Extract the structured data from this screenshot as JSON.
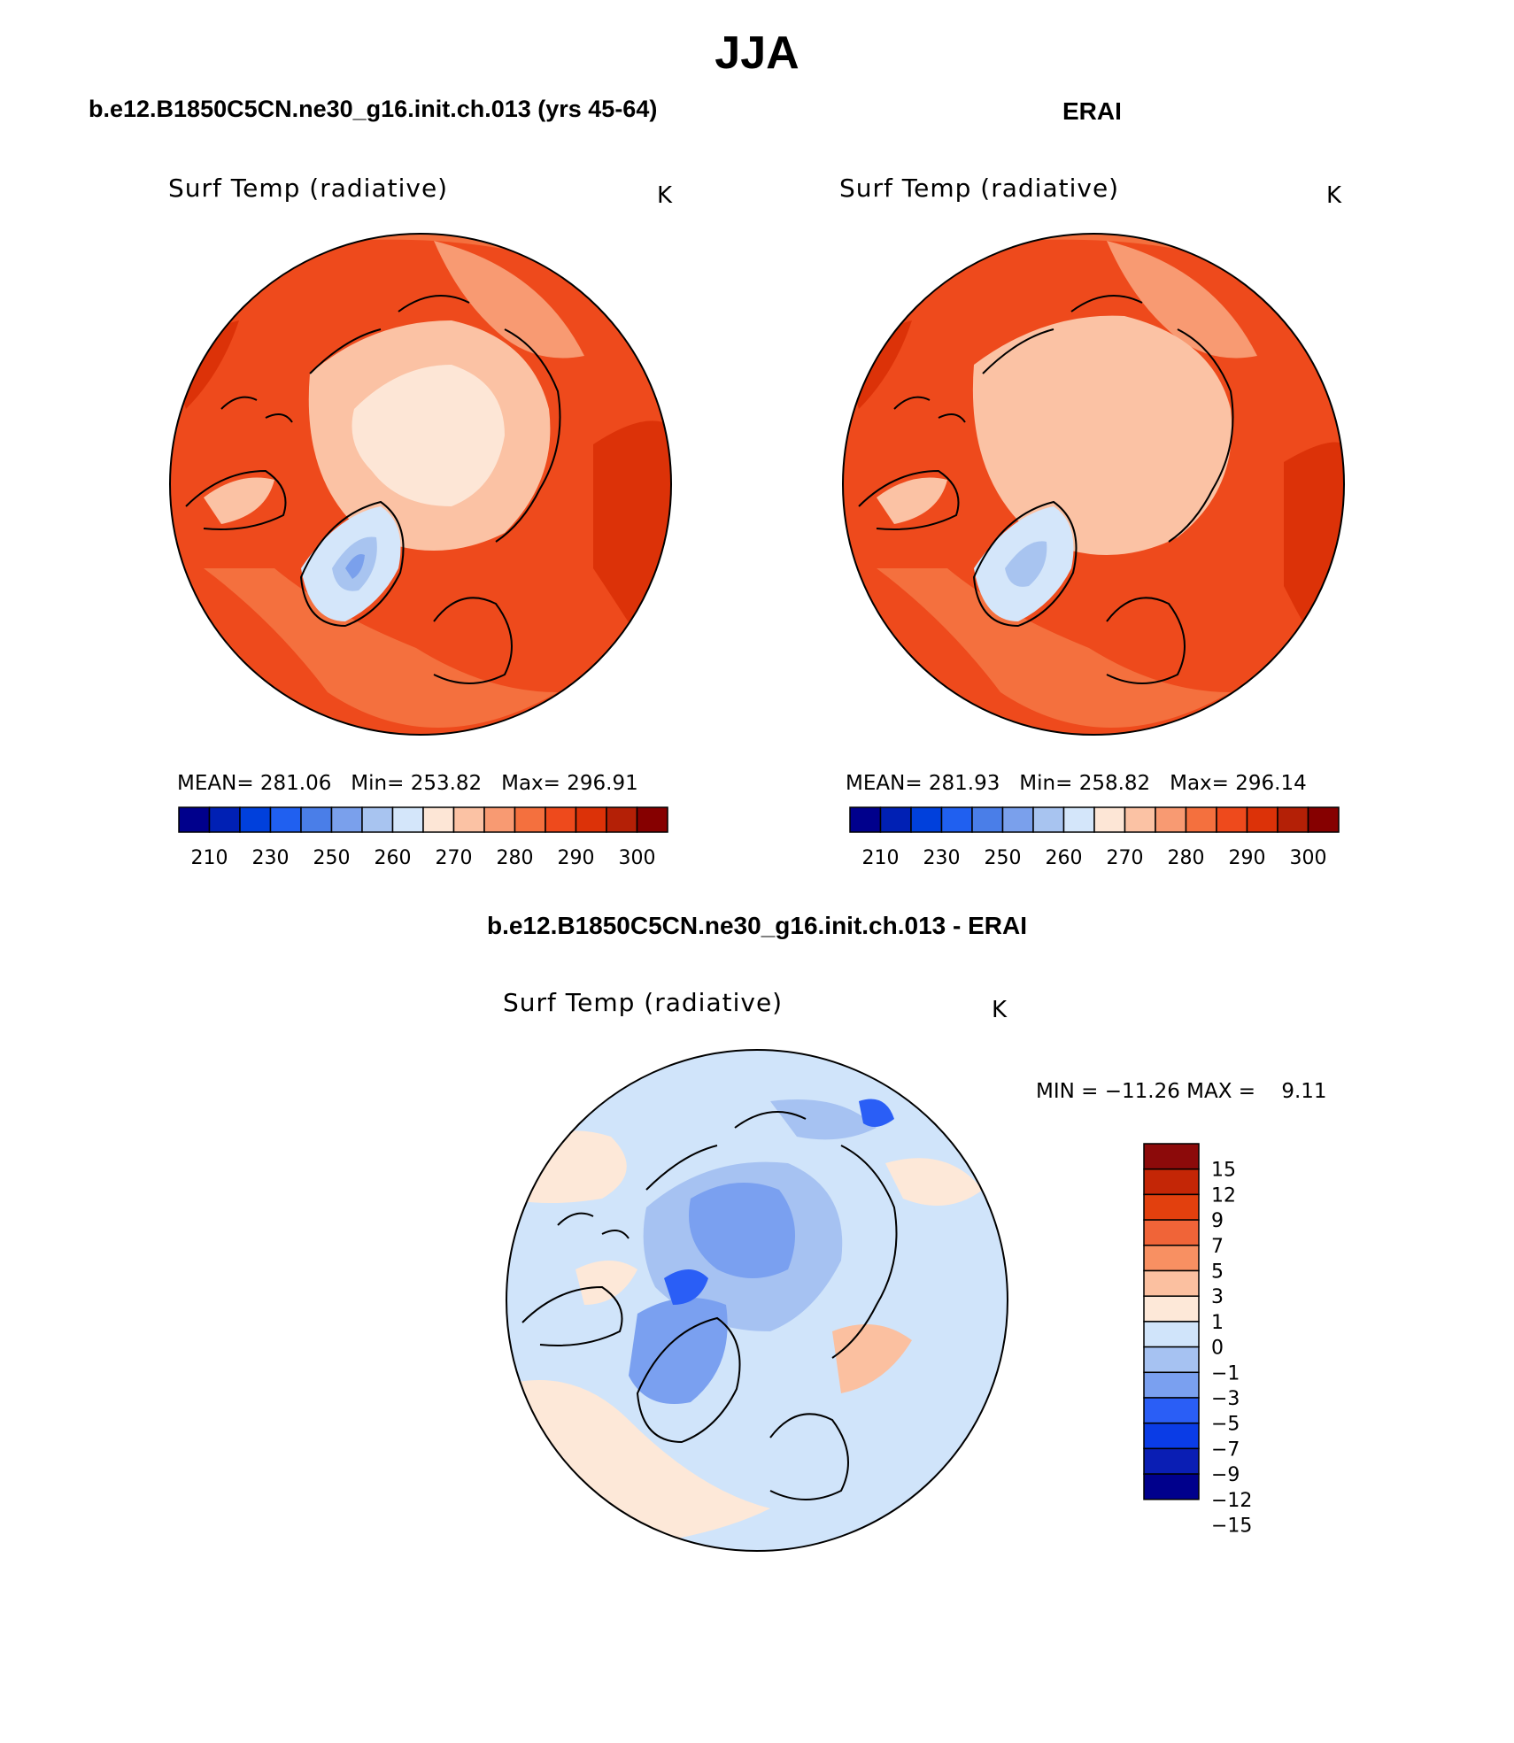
{
  "page": {
    "main_title": "JJA",
    "left_title": "b.e12.B1850C5CN.ne30_g16.init.ch.013 (yrs 45-64)",
    "right_title": "ERAI",
    "diff_title": "b.e12.B1850C5CN.ne30_g16.init.ch.013 - ERAI"
  },
  "panels": {
    "model": {
      "variable": "Surf Temp (radiative)",
      "units": "K",
      "stats": "MEAN= 281.06   Min= 253.82   Max= 296.91"
    },
    "obs": {
      "variable": "Surf Temp (radiative)",
      "units": "K",
      "stats": "MEAN= 281.93   Min= 258.82   Max= 296.14"
    },
    "diff": {
      "variable": "Surf Temp (radiative)",
      "units": "K",
      "stats": "MIN = −11.26 MAX =    9.11"
    }
  },
  "colorbars": {
    "abs": {
      "colors": [
        "#00008c",
        "#0020b4",
        "#0040dc",
        "#2060f0",
        "#4a7ee8",
        "#7aa0ec",
        "#a8c4f0",
        "#d4e6fa",
        "#fde6d6",
        "#fbc2a4",
        "#f89a72",
        "#f4703e",
        "#ee4a1c",
        "#dc3208",
        "#b42006",
        "#860000"
      ],
      "labels": [
        "210",
        "230",
        "250",
        "260",
        "270",
        "280",
        "290",
        "300"
      ]
    },
    "diff": {
      "colors": [
        "#00008c",
        "#0a1eb4",
        "#0a3ce6",
        "#2a5ef6",
        "#7aa0f0",
        "#a6c2f2",
        "#d0e4fa",
        "#fde8d8",
        "#fbc0a0",
        "#f89062",
        "#f06438",
        "#e2400e",
        "#c42606",
        "#8c0a0a"
      ],
      "labels": [
        "15",
        "12",
        "9",
        "7",
        "5",
        "3",
        "1",
        "0",
        "−1",
        "−3",
        "−5",
        "−7",
        "−9",
        "−12",
        "−15"
      ]
    }
  },
  "map_colors": {
    "model_bg": "#ee4a1c",
    "obs_bg": "#ee4a1c",
    "diff_bg": "#d0e4fa"
  }
}
